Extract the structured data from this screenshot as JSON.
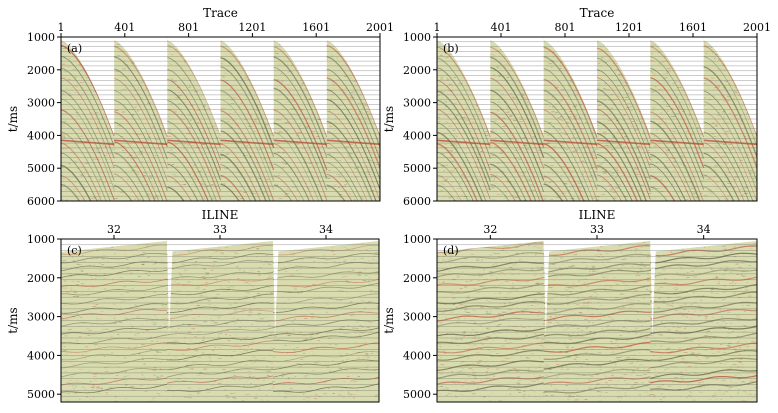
{
  "chart_data": [
    {
      "type": "heatmap",
      "panel_label": "(a)",
      "xlabel": "Trace",
      "x_ticks": [
        "1",
        "401",
        "801",
        "1201",
        "1601",
        "2001"
      ],
      "xlim": [
        1,
        2001
      ],
      "ylabel": "t/ms",
      "y_ticks": [
        "1000",
        "2000",
        "3000",
        "4000",
        "5000",
        "6000"
      ],
      "ylim": [
        1000,
        6000
      ],
      "gather_count": 6,
      "gather_type": "shot"
    },
    {
      "type": "heatmap",
      "panel_label": "(b)",
      "xlabel": "Trace",
      "x_ticks": [
        "1",
        "401",
        "801",
        "1201",
        "1601",
        "2001"
      ],
      "xlim": [
        1,
        2001
      ],
      "ylabel": "t/ms",
      "y_ticks": [
        "1000",
        "2000",
        "3000",
        "4000",
        "5000",
        "6000"
      ],
      "ylim": [
        1000,
        6000
      ],
      "gather_count": 6,
      "gather_type": "shot"
    },
    {
      "type": "heatmap",
      "panel_label": "(c)",
      "xlabel": "ILINE",
      "x_ticks": [
        "32",
        "33",
        "34"
      ],
      "ylabel": "t/ms",
      "y_ticks": [
        "1000",
        "2000",
        "3000",
        "4000",
        "5000"
      ],
      "ylim": [
        1000,
        5200
      ],
      "gather_count": 3,
      "gather_type": "cdp"
    },
    {
      "type": "heatmap",
      "panel_label": "(d)",
      "xlabel": "ILINE",
      "x_ticks": [
        "32",
        "33",
        "34"
      ],
      "ylabel": "t/ms",
      "y_ticks": [
        "1000",
        "2000",
        "3000",
        "4000",
        "5000"
      ],
      "ylim": [
        1000,
        5200
      ],
      "gather_count": 3,
      "gather_type": "cdp"
    }
  ],
  "colors": {
    "background_fill": "#d9dcae",
    "event_red": "#b8422e",
    "event_dark": "#5a5a3a",
    "trace_line": "#707070",
    "muted_zone": "#ffffff"
  }
}
